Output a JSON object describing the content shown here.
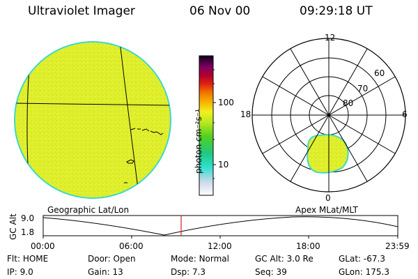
{
  "header": {
    "instrument": "Ultraviolet Imager",
    "date": "06 Nov 00",
    "time": "09:29:18 UT"
  },
  "colorbar": {
    "unit_label": "photon cm⁻²s⁻¹",
    "tick_labels": [
      "100",
      "10"
    ]
  },
  "left_panel": {
    "caption": "Geographic Lat/Lon"
  },
  "right_panel": {
    "caption": "Apex MLat/MLT",
    "mlt_labels": {
      "top": "12",
      "left": "18",
      "right": "6",
      "bottom": "0"
    },
    "mlat_labels": [
      "60",
      "70",
      "80"
    ]
  },
  "altitude_plot": {
    "ylabel": "GC Alt",
    "yticks": [
      "9.0",
      "1.8"
    ],
    "xticks": [
      "00:00",
      "06:00",
      "12:00",
      "18:00",
      "23:59"
    ]
  },
  "footer": {
    "row1": [
      {
        "label": "Flt:",
        "value": "HOME"
      },
      {
        "label": "Door:",
        "value": "Open"
      },
      {
        "label": "Mode:",
        "value": "Normal"
      },
      {
        "label": "GC Alt:",
        "value": "3.0 Re"
      },
      {
        "label": "GLat:",
        "value": "-67.3"
      }
    ],
    "row2": [
      {
        "label": "IP:",
        "value": "9.0"
      },
      {
        "label": "Gain:",
        "value": "13"
      },
      {
        "label": "Dsp:",
        "value": "7.3"
      },
      {
        "label": "Seq:",
        "value": "39"
      },
      {
        "label": "GLon:",
        "value": "175.3"
      }
    ]
  },
  "colors": {
    "image_fill": "#dfef2a",
    "image_rim": "#3fd8c8",
    "marker": "#d02020"
  }
}
